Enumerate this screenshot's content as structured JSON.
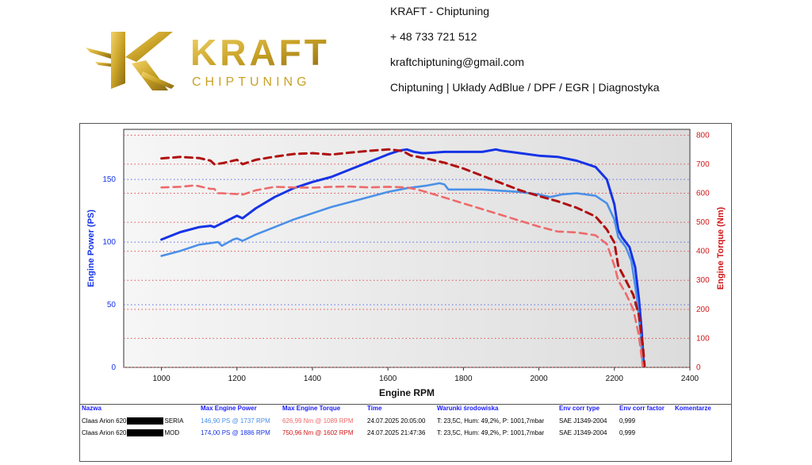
{
  "header": {
    "brand_name": "KRAFT",
    "brand_sub": "CHIPTUNING",
    "brand_mark": "K",
    "lines": [
      "KRAFT - Chiptuning",
      "+ 48 733 721 512",
      "kraftchiptuning@gmail.com",
      "Chiptuning | Układy AdBlue / DPF / EGR | Diagnostyka"
    ]
  },
  "colors": {
    "gold": "#c9a227",
    "power_mod": "#1633e6",
    "power_stock": "#4a90e8",
    "torque_mod": "#b01010",
    "torque_stock": "#ee6a6a",
    "plot_bg": "#e6e6e6"
  },
  "chart_data": {
    "type": "line",
    "xlabel": "Engine RPM",
    "ylabel_left": "Engine Power (PS)",
    "ylabel_right": "Engine Torque (Nm)",
    "xlim": [
      900,
      2400
    ],
    "ylim_left": [
      0,
      190
    ],
    "ylim_right": [
      0,
      820
    ],
    "xticks": [
      1000,
      1200,
      1400,
      1600,
      1800,
      2000,
      2200,
      2400
    ],
    "yticks_left": [
      0,
      50,
      100,
      150
    ],
    "yticks_right": [
      0,
      100,
      200,
      300,
      400,
      500,
      600,
      700,
      800
    ],
    "grid": true,
    "series": [
      {
        "axis": "left",
        "style": "solid",
        "color_key": "power_mod",
        "x": [
          1000,
          1050,
          1100,
          1130,
          1140,
          1200,
          1215,
          1250,
          1300,
          1350,
          1400,
          1450,
          1500,
          1550,
          1600,
          1630,
          1650,
          1670,
          1690,
          1700,
          1750,
          1800,
          1850,
          1886,
          1900,
          1950,
          2000,
          2050,
          2100,
          2150,
          2180,
          2200,
          2210,
          2220,
          2240,
          2255,
          2265,
          2272,
          2278
        ],
        "y": [
          102,
          108,
          112,
          113,
          112,
          121,
          119,
          127,
          136,
          143,
          148,
          152,
          158,
          164,
          170,
          173,
          174,
          172,
          171,
          171,
          172,
          172,
          172,
          174,
          173,
          171,
          169,
          168,
          165,
          160,
          150,
          130,
          110,
          104,
          96,
          80,
          55,
          30,
          2
        ]
      },
      {
        "axis": "left",
        "style": "solid",
        "color_key": "power_stock",
        "x": [
          1000,
          1050,
          1100,
          1150,
          1160,
          1190,
          1200,
          1215,
          1250,
          1300,
          1350,
          1400,
          1450,
          1500,
          1550,
          1600,
          1650,
          1700,
          1737,
          1750,
          1760,
          1800,
          1850,
          1900,
          1950,
          2000,
          2030,
          2060,
          2100,
          2150,
          2180,
          2200,
          2210,
          2230,
          2245,
          2260,
          2270,
          2275
        ],
        "y": [
          89,
          93,
          98,
          100,
          97,
          102,
          103,
          101,
          106,
          112,
          118,
          123,
          128,
          132,
          136,
          140,
          143,
          145,
          147,
          146,
          142,
          142,
          142,
          141,
          140,
          138,
          136,
          138,
          139,
          137,
          131,
          118,
          104,
          96,
          85,
          55,
          25,
          2
        ]
      },
      {
        "axis": "right",
        "style": "dashed",
        "color_key": "torque_mod",
        "x": [
          1000,
          1050,
          1100,
          1130,
          1140,
          1160,
          1200,
          1215,
          1250,
          1300,
          1350,
          1400,
          1450,
          1500,
          1550,
          1602,
          1640,
          1660,
          1700,
          1750,
          1800,
          1850,
          1900,
          1950,
          2000,
          2050,
          2100,
          2150,
          2180,
          2200,
          2210,
          2230,
          2250,
          2265,
          2275,
          2280
        ],
        "y": [
          720,
          725,
          721,
          712,
          700,
          703,
          715,
          700,
          715,
          726,
          735,
          738,
          733,
          740,
          746,
          751,
          745,
          730,
          720,
          705,
          685,
          660,
          635,
          610,
          590,
          572,
          550,
          520,
          475,
          430,
          350,
          300,
          250,
          180,
          80,
          5
        ]
      },
      {
        "axis": "right",
        "style": "dashed",
        "color_key": "torque_stock",
        "x": [
          1000,
          1050,
          1089,
          1130,
          1140,
          1150,
          1160,
          1200,
          1215,
          1250,
          1300,
          1350,
          1400,
          1450,
          1500,
          1550,
          1600,
          1650,
          1680,
          1700,
          1750,
          1800,
          1850,
          1900,
          1950,
          2000,
          2050,
          2100,
          2150,
          2180,
          2200,
          2210,
          2230,
          2250,
          2265,
          2275
        ],
        "y": [
          620,
          622,
          627,
          615,
          615,
          600,
          600,
          597,
          595,
          610,
          622,
          620,
          619,
          622,
          623,
          620,
          622,
          620,
          612,
          605,
          585,
          565,
          545,
          525,
          505,
          485,
          468,
          465,
          455,
          425,
          350,
          300,
          255,
          200,
          110,
          5
        ]
      }
    ]
  },
  "table": {
    "headers": [
      "Nazwa",
      "Max Engine Power",
      "Max Engine Torque",
      "Time",
      "Warunki środowiska",
      "Env corr type",
      "Env corr factor",
      "Komentarze"
    ],
    "rows": [
      {
        "name": "Claas Arion 620",
        "suffix": "SERIA",
        "power": "146,90 PS @ 1737 RPM",
        "torque": "626,99 Nm @ 1089 RPM",
        "time": "24.07.2025 20:05:00",
        "env": "T: 23,5C, Hum: 49,2%, P: 1001,7mbar",
        "corr_type": "SAE J1349-2004",
        "corr_factor": "0,999",
        "comment": ""
      },
      {
        "name": "Claas Arion 620",
        "suffix": "MOD",
        "power": "174,00 PS @ 1886 RPM",
        "torque": "750,96 Nm @ 1602 RPM",
        "time": "24.07.2025 21:47:36",
        "env": "T: 23,5C, Hum: 49,2%, P: 1001,7mbar",
        "corr_type": "SAE J1349-2004",
        "corr_factor": "0,999",
        "comment": ""
      }
    ]
  }
}
